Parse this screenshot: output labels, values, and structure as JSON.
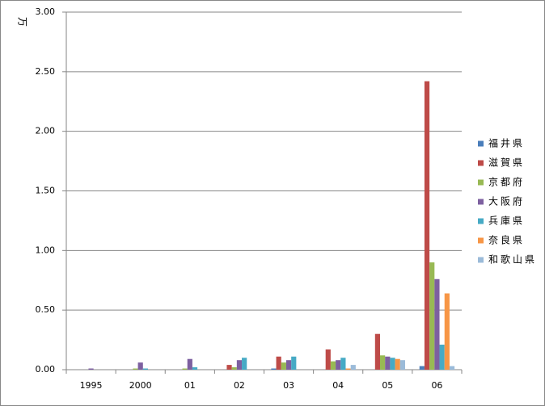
{
  "chart_data": {
    "type": "bar",
    "y_label": "万",
    "categories": [
      "1995",
      "2000",
      "01",
      "02",
      "03",
      "04",
      "05",
      "06"
    ],
    "series": [
      {
        "name": "福井県",
        "color": "#4a7ebb",
        "values": [
          0,
          0,
          0,
          0,
          0.01,
          0,
          0,
          0.03
        ]
      },
      {
        "name": "滋賀県",
        "color": "#be4b48",
        "values": [
          0,
          0,
          0,
          0.04,
          0.11,
          0.17,
          0.3,
          2.42
        ]
      },
      {
        "name": "京都府",
        "color": "#98b954",
        "values": [
          0,
          0.01,
          0.01,
          0.02,
          0.06,
          0.07,
          0.12,
          0.9
        ]
      },
      {
        "name": "大阪府",
        "color": "#7d60a0",
        "values": [
          0.01,
          0.06,
          0.09,
          0.08,
          0.08,
          0.08,
          0.11,
          0.76
        ]
      },
      {
        "name": "兵庫県",
        "color": "#46aac5",
        "values": [
          0,
          0.01,
          0.02,
          0.1,
          0.11,
          0.1,
          0.1,
          0.21
        ]
      },
      {
        "name": "奈良県",
        "color": "#f79646",
        "values": [
          0,
          0,
          0,
          0,
          0,
          0.01,
          0.09,
          0.64
        ]
      },
      {
        "name": "和歌山県",
        "color": "#9bbbd9",
        "values": [
          0,
          0,
          0,
          0,
          0,
          0.04,
          0.08,
          0.03
        ]
      }
    ],
    "ylim": [
      0,
      3
    ],
    "yticks": [
      {
        "value": 0,
        "label": "0.00"
      },
      {
        "value": 0.5,
        "label": "0.50"
      },
      {
        "value": 1,
        "label": "1.00"
      },
      {
        "value": 1.5,
        "label": "1.50"
      },
      {
        "value": 2,
        "label": "2.00"
      },
      {
        "value": 2.5,
        "label": "2.50"
      },
      {
        "value": 3,
        "label": "3.00"
      }
    ],
    "grid": true,
    "legend": "right"
  }
}
